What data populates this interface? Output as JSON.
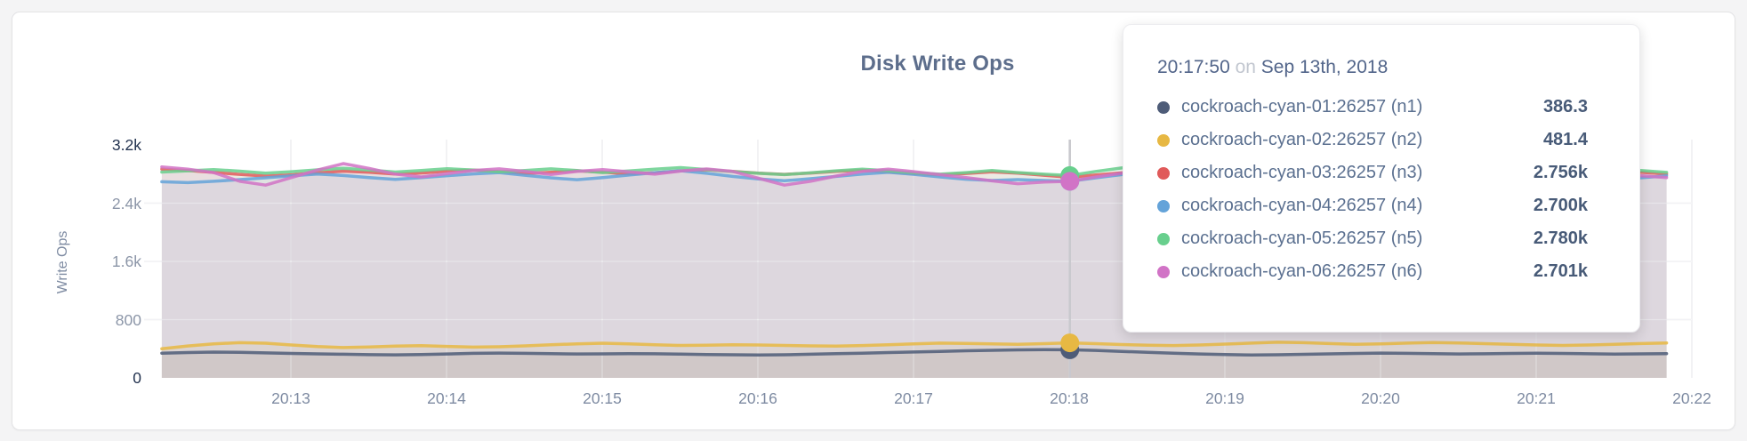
{
  "title": "Disk Write Ops",
  "y_axis_title": "Write Ops",
  "tooltip": {
    "time": "20:17:50",
    "connector": "on",
    "date": "Sep 13th, 2018"
  },
  "chart_data": {
    "type": "line",
    "title": "Disk Write Ops",
    "xlabel": "",
    "ylabel": "Write Ops",
    "ylim": [
      0,
      3200
    ],
    "grid": true,
    "legend_position": "tooltip",
    "y_ticks": [
      0,
      800,
      1600,
      2400,
      3200
    ],
    "y_tick_labels": [
      "0",
      "800",
      "1.6k",
      "2.4k",
      "3.2k"
    ],
    "x_tick_labels": [
      "20:13",
      "20:14",
      "20:15",
      "20:16",
      "20:17",
      "20:18",
      "20:19",
      "20:20",
      "20:21",
      "20:22"
    ],
    "x_start_time": "20:12:10",
    "x_step_seconds": 10,
    "hover_index": 35,
    "hover_time": "20:17:50",
    "hover_date": "Sep 13th, 2018",
    "series": [
      {
        "name": "cockroach-cyan-01:26257 (n1)",
        "color": "#4e5c78",
        "hover_label": "386.3",
        "values": [
          340,
          348,
          354,
          350,
          343,
          336,
          330,
          325,
          319,
          316,
          321,
          329,
          337,
          341,
          337,
          332,
          328,
          330,
          334,
          331,
          326,
          321,
          317,
          314,
          318,
          325,
          332,
          340,
          348,
          356,
          364,
          372,
          379,
          385,
          388,
          386.3,
          378,
          364,
          350,
          338,
          328,
          320,
          315,
          318,
          324,
          330,
          336,
          341,
          337,
          332,
          328,
          331,
          336,
          340,
          336,
          331,
          327,
          330,
          334
        ]
      },
      {
        "name": "cockroach-cyan-02:26257 (n2)",
        "color": "#e7b843",
        "hover_label": "481.4",
        "values": [
          400,
          438,
          468,
          484,
          476,
          452,
          430,
          416,
          424,
          436,
          442,
          432,
          422,
          428,
          440,
          454,
          468,
          476,
          466,
          454,
          446,
          450,
          456,
          452,
          446,
          440,
          436,
          444,
          456,
          468,
          478,
          474,
          466,
          460,
          470,
          481.4,
          470,
          458,
          448,
          444,
          452,
          464,
          478,
          490,
          484,
          472,
          462,
          468,
          478,
          486,
          480,
          470,
          460,
          452,
          446,
          452,
          462,
          472,
          480
        ]
      },
      {
        "name": "cockroach-cyan-03:26257 (n3)",
        "color": "#e05a5a",
        "hover_label": "2.756k",
        "values": [
          2868,
          2850,
          2822,
          2796,
          2772,
          2790,
          2816,
          2840,
          2824,
          2800,
          2814,
          2840,
          2856,
          2832,
          2808,
          2824,
          2844,
          2826,
          2802,
          2818,
          2842,
          2858,
          2836,
          2812,
          2796,
          2814,
          2836,
          2852,
          2830,
          2806,
          2790,
          2808,
          2830,
          2812,
          2784,
          2756,
          2788,
          2816,
          2838,
          2820,
          2796,
          2774,
          2792,
          2818,
          2840,
          2822,
          2798,
          2780,
          2800,
          2824,
          2844,
          2826,
          2802,
          2786,
          2806,
          2830,
          2848,
          2824,
          2800
        ]
      },
      {
        "name": "cockroach-cyan-04:26257 (n4)",
        "color": "#64a3d9",
        "hover_label": "2.700k",
        "values": [
          2694,
          2682,
          2700,
          2724,
          2748,
          2776,
          2800,
          2780,
          2752,
          2726,
          2750,
          2778,
          2802,
          2820,
          2784,
          2748,
          2722,
          2750,
          2786,
          2818,
          2846,
          2810,
          2768,
          2732,
          2708,
          2736,
          2768,
          2800,
          2824,
          2796,
          2760,
          2728,
          2712,
          2724,
          2712,
          2700,
          2748,
          2792,
          2820,
          2786,
          2746,
          2712,
          2690,
          2716,
          2752,
          2788,
          2812,
          2782,
          2748,
          2718,
          2736,
          2768,
          2798,
          2820,
          2788,
          2754,
          2726,
          2748,
          2776
        ]
      },
      {
        "name": "cockroach-cyan-05:26257 (n5)",
        "color": "#68cf8d",
        "hover_label": "2.780k",
        "values": [
          2828,
          2844,
          2862,
          2840,
          2812,
          2832,
          2858,
          2880,
          2856,
          2828,
          2848,
          2874,
          2856,
          2830,
          2850,
          2872,
          2848,
          2820,
          2842,
          2868,
          2888,
          2862,
          2834,
          2810,
          2792,
          2816,
          2844,
          2868,
          2846,
          2818,
          2798,
          2820,
          2848,
          2820,
          2798,
          2780,
          2836,
          2884,
          2902,
          2868,
          2832,
          2806,
          2830,
          2858,
          2880,
          2854,
          2826,
          2806,
          2830,
          2856,
          2876,
          2850,
          2822,
          2804,
          2828,
          2854,
          2874,
          2848,
          2822
        ]
      },
      {
        "name": "cockroach-cyan-06:26257 (n6)",
        "color": "#d173c6",
        "hover_label": "2.701k",
        "values": [
          2898,
          2868,
          2820,
          2700,
          2648,
          2752,
          2856,
          2944,
          2876,
          2800,
          2760,
          2806,
          2848,
          2872,
          2836,
          2794,
          2836,
          2862,
          2830,
          2798,
          2842,
          2870,
          2836,
          2742,
          2648,
          2700,
          2772,
          2836,
          2868,
          2832,
          2792,
          2750,
          2706,
          2668,
          2690,
          2701,
          2760,
          2810,
          2846,
          2876,
          2840,
          2800,
          2832,
          2862,
          2836,
          2800,
          2772,
          2802,
          2836,
          2860,
          2830,
          2796,
          2824,
          2854,
          2872,
          2840,
          2806,
          2778,
          2750
        ]
      }
    ]
  }
}
